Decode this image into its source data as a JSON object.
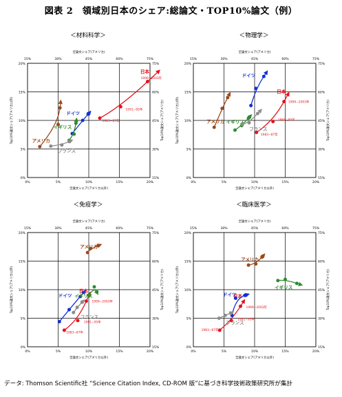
{
  "figure": {
    "title": "図表 2　領域別日本のシェア:総論文・TOP10%論文（例）",
    "footer": "データ: Thomson Scientific社 “Science Citation Index, CD-ROM 版”に基づき科学技術政策研究所が集計"
  },
  "axes": {
    "bottom_ticks": [
      "0%",
      "5%",
      "10%",
      "15%",
      "20%"
    ],
    "top_ticks": [
      "15%",
      "30%",
      "45%",
      "60%",
      "75%"
    ],
    "left_ticks": [
      "0%",
      "5%",
      "10%",
      "15%",
      "20%"
    ],
    "right_ticks": [
      "15%",
      "30%",
      "45%",
      "60%",
      "75%"
    ],
    "top_label": "全論文シェア(アメリカ)",
    "bottom_label": "全論文シェア(アメリカ以外)",
    "left_label": "Top10%論文シェア(アメリカ以外)",
    "right_label": "Top10%論文シェア(アメリカ)"
  },
  "colors": {
    "japan": "#e8101a",
    "germany": "#1030d8",
    "uk": "#2e8b2e",
    "usa": "#9a4a1c",
    "france": "#8c8c8c"
  },
  "chart_data": [
    {
      "type": "line",
      "title": "＜材料科学＞",
      "xlabel": "全論文シェア(アメリカ以外)",
      "ylabel": "Top10%論文シェア(アメリカ以外)",
      "xlim": [
        0,
        20
      ],
      "ylim": [
        0,
        20
      ],
      "secondary_axes_range": [
        15,
        75
      ],
      "grid": true,
      "series": [
        {
          "name": "日本",
          "color_key": "japan",
          "label": "日本",
          "values": [
            [
              11.8,
              10.4
            ],
            [
              15.2,
              12.4
            ],
            [
              19.6,
              16.8
            ]
          ],
          "annotations": [
            {
              "text": "1999−2003年",
              "at": [
                18.5,
                17.5
              ]
            },
            {
              "text": "1991−95年",
              "at": [
                16.0,
                12.0
              ]
            },
            {
              "text": "1983−87年",
              "at": [
                12.2,
                10.0
              ]
            }
          ]
        },
        {
          "name": "ドイツ",
          "color_key": "germany",
          "label": "ドイツ",
          "values": [
            [
              7.3,
              7.7
            ],
            [
              9.0,
              10.0
            ],
            [
              9.9,
              11.1
            ]
          ]
        },
        {
          "name": "イギリス",
          "color_key": "uk",
          "label": "イギリス",
          "values": [
            [
              6.8,
              6.5
            ],
            [
              7.6,
              7.6
            ],
            [
              7.9,
              9.5
            ]
          ]
        },
        {
          "name": "アメリカ",
          "color_key": "usa",
          "label": "アメリカ",
          "values": [
            [
              2.0,
              5.4
            ],
            [
              5.0,
              9.3
            ],
            [
              5.3,
              12.2
            ]
          ],
          "secondary_scale": true
        },
        {
          "name": "フランス",
          "color_key": "france",
          "label": "フランス",
          "values": [
            [
              3.8,
              5.5
            ],
            [
              5.6,
              5.7
            ],
            [
              6.8,
              6.3
            ]
          ]
        }
      ]
    },
    {
      "type": "line",
      "title": "＜物理学＞",
      "xlabel": "全論文シェア(アメリカ以外)",
      "ylabel": "Top10%論文シェア(アメリカ以外)",
      "xlim": [
        0,
        20
      ],
      "ylim": [
        0,
        20
      ],
      "secondary_axes_range": [
        15,
        75
      ],
      "grid": true,
      "series": [
        {
          "name": "日本",
          "color_key": "japan",
          "label": "日本",
          "values": [
            [
              10.3,
              7.9
            ],
            [
              13.0,
              9.8
            ],
            [
              14.8,
              13.3
            ]
          ],
          "annotations": [
            {
              "text": "1999−2003年",
              "at": [
                15.5,
                13.3
              ]
            },
            {
              "text": "1991−95年",
              "at": [
                13.8,
                10.2
              ]
            },
            {
              "text": "1983−87年",
              "at": [
                11.0,
                7.6
              ]
            }
          ]
        },
        {
          "name": "ドイツ",
          "color_key": "germany",
          "label": "ドイツ",
          "values": [
            [
              9.4,
              12.6
            ],
            [
              10.2,
              15.6
            ],
            [
              11.5,
              17.7
            ]
          ]
        },
        {
          "name": "イギリス",
          "color_key": "uk",
          "label": "イギリス",
          "values": [
            [
              6.8,
              8.3
            ],
            [
              7.9,
              9.1
            ],
            [
              9.0,
              10.4
            ]
          ]
        },
        {
          "name": "アメリカ",
          "color_key": "usa",
          "label": "アメリカ",
          "values": [
            [
              3.4,
              8.8
            ],
            [
              4.7,
              12.1
            ],
            [
              5.6,
              14.0
            ]
          ],
          "secondary_scale": true
        },
        {
          "name": "フランス",
          "color_key": "france",
          "label": "フランス",
          "values": [
            [
              8.0,
              9.3
            ],
            [
              9.1,
              9.6
            ],
            [
              10.5,
              11.2
            ]
          ]
        }
      ]
    },
    {
      "type": "line",
      "title": "＜免疫学＞",
      "xlabel": "全論文シェア(アメリカ以外)",
      "ylabel": "Top10%論文シェア(アメリカ以外)",
      "xlim": [
        0,
        20
      ],
      "ylim": [
        0,
        20
      ],
      "secondary_axes_range": [
        15,
        75
      ],
      "grid": true,
      "series": [
        {
          "name": "日本",
          "color_key": "japan",
          "label": "日本",
          "values": [
            [
              6.0,
              2.9
            ],
            [
              8.2,
              4.6
            ],
            [
              9.6,
              8.0
            ]
          ],
          "annotations": [
            {
              "text": "1999−2003年",
              "at": [
                10.5,
                8.0
              ]
            },
            {
              "text": "1991−95年",
              "at": [
                9.2,
                4.4
              ]
            },
            {
              "text": "1983−87年",
              "at": [
                6.3,
                2.6
              ]
            }
          ]
        },
        {
          "name": "ドイツ",
          "color_key": "germany",
          "label": "ドイツ",
          "values": [
            [
              5.2,
              4.4
            ],
            [
              6.8,
              6.5
            ],
            [
              8.6,
              8.8
            ]
          ]
        },
        {
          "name": "イギリス",
          "color_key": "uk",
          "label": "イギリス",
          "values": [
            [
              10.0,
              9.0
            ],
            [
              10.9,
              10.5
            ],
            [
              11.3,
              9.6
            ]
          ]
        },
        {
          "name": "アメリカ",
          "color_key": "usa",
          "label": "アメリカ",
          "values": [
            [
              9.8,
              16.5
            ],
            [
              10.3,
              17.2
            ],
            [
              11.5,
              17.7
            ]
          ],
          "secondary_scale": true
        },
        {
          "name": "フランス",
          "color_key": "france",
          "label": "フランス",
          "values": [
            [
              7.5,
              6.0
            ],
            [
              8.1,
              6.9
            ],
            [
              8.9,
              7.8
            ]
          ]
        }
      ]
    },
    {
      "type": "line",
      "title": "＜臨床医学＞",
      "xlabel": "全論文シェア(アメリカ以外)",
      "ylabel": "Top10%論文シェア(アメリカ以外)",
      "xlim": [
        0,
        20
      ],
      "ylim": [
        0,
        20
      ],
      "secondary_axes_range": [
        15,
        75
      ],
      "grid": true,
      "series": [
        {
          "name": "日本",
          "color_key": "japan",
          "label": "日本",
          "values": [
            [
              4.3,
              2.9
            ],
            [
              6.2,
              4.6
            ],
            [
              7.7,
              7.1
            ]
          ],
          "annotations": [
            {
              "text": "1999−2003年",
              "at": [
                8.6,
                7.0
              ]
            },
            {
              "text": "1991−95年",
              "at": [
                7.2,
                4.9
              ]
            },
            {
              "text": "1983−87年",
              "at": [
                1.3,
                3.0
              ]
            }
          ]
        },
        {
          "name": "ドイツ",
          "color_key": "germany",
          "label": "ドイツ",
          "values": [
            [
              6.3,
              5.5
            ],
            [
              6.9,
              8.5
            ],
            [
              8.4,
              9.0
            ]
          ]
        },
        {
          "name": "イギリス",
          "color_key": "uk",
          "label": "イギリス",
          "values": [
            [
              13.8,
              11.6
            ],
            [
              15.0,
              11.8
            ],
            [
              16.9,
              11.1
            ]
          ]
        },
        {
          "name": "アメリカ",
          "color_key": "usa",
          "label": "アメリカ",
          "values": [
            [
              9.0,
              14.3
            ],
            [
              10.2,
              14.5
            ],
            [
              11.2,
              15.7
            ]
          ],
          "secondary_scale": true
        },
        {
          "name": "フランス",
          "color_key": "france",
          "label": "フランス",
          "values": [
            [
              4.2,
              5.0
            ],
            [
              5.2,
              5.5
            ],
            [
              6.1,
              5.9
            ]
          ]
        }
      ]
    }
  ]
}
